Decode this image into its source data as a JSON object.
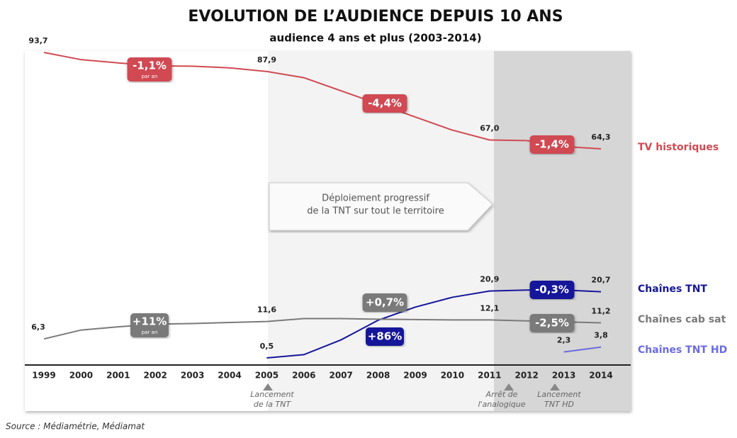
{
  "chart_data": {
    "type": "line",
    "title": "EVOLUTION DE L’AUDIENCE DEPUIS 10 ANS",
    "subtitle": "audience 4 ans et plus (2003-2014)",
    "categories": [
      "1999",
      "2000",
      "2001",
      "2002",
      "2003",
      "2004",
      "2005",
      "2006",
      "2007",
      "2008",
      "2009",
      "2010",
      "2011",
      "2012",
      "2013",
      "2014"
    ],
    "series": [
      {
        "name": "TV historiques",
        "color": "#d04a52",
        "values": [
          93.7,
          91.5,
          90.5,
          89.6,
          89.5,
          89.0,
          87.9,
          86.0,
          82.0,
          78.0,
          74.0,
          70.0,
          67.0,
          66.8,
          65.0,
          64.3
        ],
        "value_labels": [
          "93,7",
          null,
          null,
          null,
          null,
          null,
          "87,9",
          null,
          null,
          null,
          null,
          null,
          "67,0",
          null,
          null,
          "64,3"
        ]
      },
      {
        "name": "Chaînes TNT",
        "color": "#16169a",
        "values": [
          null,
          null,
          null,
          null,
          null,
          null,
          0.5,
          1.5,
          6.0,
          12.0,
          16.0,
          19.0,
          20.9,
          21.2,
          21.2,
          20.7
        ],
        "value_labels": [
          null,
          null,
          null,
          null,
          null,
          null,
          "0,5",
          null,
          null,
          null,
          null,
          null,
          "20,9",
          null,
          null,
          "20,7"
        ]
      },
      {
        "name": "Chaînes cab sat",
        "color": "#7a7a7a",
        "values": [
          6.3,
          9.0,
          10.0,
          10.8,
          11.0,
          11.3,
          11.6,
          12.5,
          12.5,
          12.3,
          12.2,
          12.1,
          12.1,
          11.8,
          11.5,
          11.2
        ],
        "value_labels": [
          "6,3",
          null,
          null,
          null,
          null,
          null,
          "11,6",
          null,
          null,
          null,
          null,
          null,
          "12,1",
          null,
          null,
          "11,2"
        ]
      },
      {
        "name": "Chaînes TNT HD",
        "color": "#6b6be0",
        "values": [
          null,
          null,
          null,
          null,
          null,
          null,
          null,
          null,
          null,
          null,
          null,
          null,
          null,
          null,
          2.3,
          3.8
        ],
        "value_labels": [
          null,
          null,
          null,
          null,
          null,
          null,
          null,
          null,
          null,
          null,
          null,
          null,
          null,
          null,
          "2,3",
          "3,8"
        ]
      }
    ],
    "annotations": [
      {
        "text": "-1,1%",
        "sub": "par an",
        "color": "#d04a52"
      },
      {
        "text": "-4,4%",
        "color": "#d04a52"
      },
      {
        "text": "-1,4%",
        "color": "#d04a52"
      },
      {
        "text": "+11%",
        "sub": "par an",
        "color": "#7a7a7a"
      },
      {
        "text": "+0,7%",
        "color": "#7a7a7a"
      },
      {
        "text": "-2,5%",
        "color": "#7a7a7a"
      },
      {
        "text": "+86%",
        "color": "#16169a"
      },
      {
        "text": "-0,3%",
        "color": "#16169a"
      }
    ],
    "deployment": [
      "Déploiement progressif",
      "de la TNT sur tout le territoire"
    ],
    "milestones": [
      {
        "lines": [
          "Lancement",
          "de la TNT"
        ]
      },
      {
        "lines": [
          "Arrêt de",
          "l'analogique"
        ]
      },
      {
        "lines": [
          "Lancement",
          "TNT HD"
        ]
      }
    ],
    "source": "Source : Médiamétrie, Médiamat"
  }
}
